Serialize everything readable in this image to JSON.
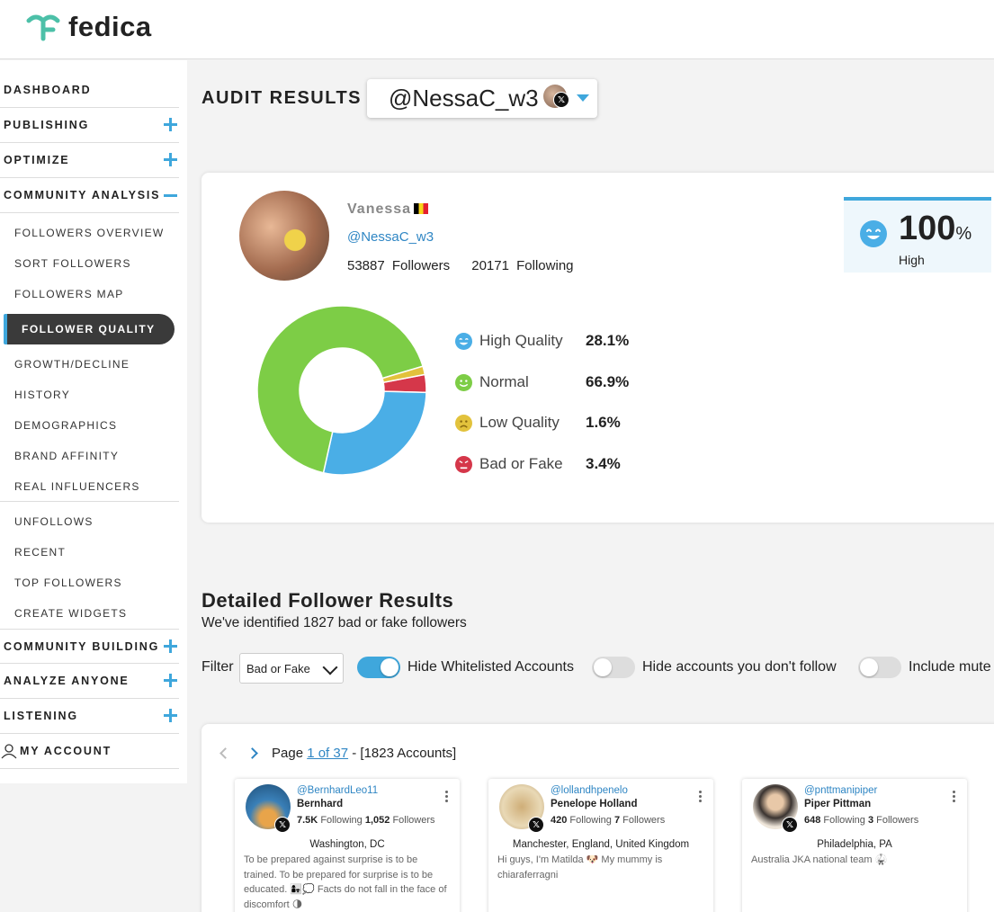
{
  "brand": {
    "name": "fedica",
    "color": "#4cc0a8"
  },
  "sidebar": {
    "sections": [
      {
        "label": "DASHBOARD",
        "expand": "none"
      },
      {
        "label": "PUBLISHING",
        "expand": "plus"
      },
      {
        "label": "OPTIMIZE",
        "expand": "plus"
      },
      {
        "label": "COMMUNITY ANALYSIS",
        "expand": "minus"
      }
    ],
    "community_analysis_items": [
      "FOLLOWERS OVERVIEW",
      "SORT FOLLOWERS",
      "FOLLOWERS MAP",
      "FOLLOWER QUALITY",
      "GROWTH/DECLINE",
      "HISTORY",
      "DEMOGRAPHICS",
      "BRAND AFFINITY",
      "REAL INFLUENCERS",
      "UNFOLLOWS",
      "RECENT",
      "TOP FOLLOWERS",
      "CREATE WIDGETS"
    ],
    "active_item": "FOLLOWER QUALITY",
    "bottom_sections": [
      {
        "label": "COMMUNITY BUILDING",
        "expand": "plus"
      },
      {
        "label": "ANALYZE ANYONE",
        "expand": "plus"
      },
      {
        "label": "LISTENING",
        "expand": "plus"
      },
      {
        "label": "MY ACCOUNT",
        "expand": "none",
        "icon": "user-icon"
      }
    ]
  },
  "audit": {
    "title": "AUDIT RESULTS",
    "selected_account": "@NessaC_w3",
    "network_icon": "x-logo-icon"
  },
  "profile": {
    "display_name": "Vanessa",
    "flag": "belgium-flag-icon",
    "handle": "@NessaC_w3",
    "followers_count": "53887",
    "followers_label": "Followers",
    "following_count": "20171",
    "following_label": "Following"
  },
  "score": {
    "value": "100",
    "unit": "%",
    "label": "High",
    "icon": "happy-face-icon"
  },
  "chart_data": {
    "type": "pie",
    "donut": true,
    "categories": [
      "High Quality",
      "Normal",
      "Low Quality",
      "Bad or Fake"
    ],
    "values": [
      28.1,
      66.9,
      1.6,
      3.4
    ],
    "labels": [
      "28.1%",
      "66.9%",
      "1.6%",
      "3.4%"
    ],
    "colors": [
      "#4aaee6",
      "#7dcd46",
      "#e2c23c",
      "#d5374a"
    ],
    "icons": [
      "happy-face-icon",
      "smile-face-icon",
      "sad-face-icon",
      "angry-face-icon"
    ],
    "legend_position": "right"
  },
  "details": {
    "title": "Detailed Follower Results",
    "subtitle": "We've identified 1827 bad or fake followers",
    "filter_label": "Filter",
    "filter_value": "Bad or Fake",
    "toggles": [
      {
        "label": "Hide Whitelisted Accounts",
        "on": true
      },
      {
        "label": "Hide accounts you don't follow",
        "on": false
      },
      {
        "label": "Include mute",
        "on": false
      }
    ]
  },
  "pager": {
    "prefix": "Page ",
    "page_link": "1 of 37",
    "suffix": " - [1823 Accounts]"
  },
  "followers": [
    {
      "handle": "@BernhardLeo11",
      "name": "Bernhard",
      "following": "7.5K",
      "following_label": "Following",
      "followers": "1,052",
      "followers_label": "Followers",
      "location": "Washington, DC",
      "bio": "To be prepared against surprise is to be trained. To be prepared for surprise is to be educated. 👩‍👧💭 Facts do not fall in the face of discomfort 🌗",
      "avatar_colors": [
        "#e8a44a",
        "#2f6fa8"
      ]
    },
    {
      "handle": "@lollandhpenelo",
      "name": "Penelope Holland",
      "following": "420",
      "following_label": "Following",
      "followers": "7",
      "followers_label": "Followers",
      "location": "Manchester, England, United Kingdom",
      "bio": "Hi guys, I'm Matilda 🐶 My mummy is chiaraferragni",
      "avatar_colors": [
        "#e9d9b6",
        "#a88a5a"
      ]
    },
    {
      "handle": "@pnttmanipiper",
      "name": "Piper Pittman",
      "following": "648",
      "following_label": "Following",
      "followers": "3",
      "followers_label": "Followers",
      "location": "Philadelphia, PA",
      "bio": "Australia JKA national team 🥋",
      "avatar_colors": [
        "#efe6da",
        "#3a3330"
      ]
    }
  ]
}
